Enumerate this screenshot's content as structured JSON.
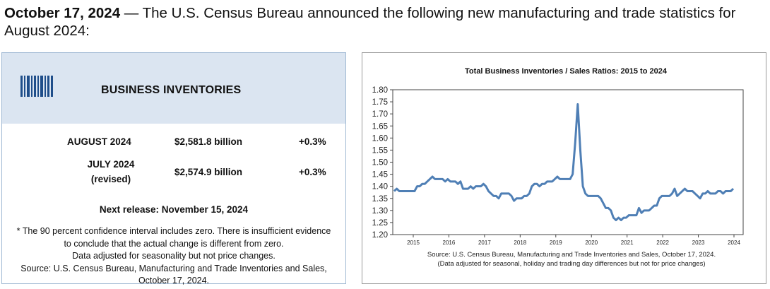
{
  "headline": {
    "date": "October 17, 2024",
    "text": " — The U.S. Census Bureau announced the following new manufacturing and trade statistics for August 2024:"
  },
  "panel": {
    "title": "BUSINESS INVENTORIES",
    "rows": [
      {
        "label": "AUGUST 2024",
        "value": "$2,581.8 billion",
        "change": "+0.3%"
      },
      {
        "label": "JULY 2024",
        "sublabel": "(revised)",
        "value": "$2,574.9 billion",
        "change": "+0.3%"
      }
    ],
    "next_release": "Next release: November 15, 2024",
    "notes": [
      "* The 90 percent confidence interval includes zero. There is insufficient evidence",
      "to conclude that the actual change is different from zero.",
      "Data adjusted for seasonality but not price changes.",
      "Source: U.S. Census Bureau, Manufacturing and Trade Inventories and Sales,",
      "October 17, 2024."
    ]
  },
  "chart_data": {
    "type": "line",
    "title": "Total Business Inventories / Sales Ratios: 2015 to 2024",
    "ylim": [
      1.2,
      1.8
    ],
    "yticks": [
      "1.80",
      "1.75",
      "1.70",
      "1.65",
      "1.60",
      "1.55",
      "1.50",
      "1.45",
      "1.40",
      "1.35",
      "1.30",
      "1.25",
      "1.20"
    ],
    "xticks": [
      "2015",
      "2016",
      "2017",
      "2018",
      "2019",
      "2020",
      "2021",
      "2022",
      "2023",
      "2024"
    ],
    "grid": false,
    "line_color": "#4f7fb5",
    "source": "Source: U.S. Census Bureau, Manufacturing and Trade Inventories and Sales, October 17, 2024.",
    "footnote": "(Data adjusted for seasonal, holiday and trading day differences but not for price changes)",
    "series": [
      {
        "values": [
          1.38,
          1.39,
          1.38,
          1.38,
          1.38,
          1.38,
          1.38,
          1.38,
          1.38,
          1.4,
          1.4,
          1.41,
          1.41,
          1.42,
          1.43,
          1.44,
          1.43,
          1.43,
          1.43,
          1.43,
          1.42,
          1.43,
          1.42,
          1.42,
          1.42,
          1.41,
          1.42,
          1.39,
          1.39,
          1.39,
          1.4,
          1.39,
          1.4,
          1.4,
          1.4,
          1.41,
          1.4,
          1.38,
          1.37,
          1.36,
          1.36,
          1.35,
          1.37,
          1.37,
          1.37,
          1.37,
          1.36,
          1.34,
          1.35,
          1.35,
          1.35,
          1.36,
          1.36,
          1.37,
          1.4,
          1.41,
          1.41,
          1.4,
          1.41,
          1.41,
          1.42,
          1.42,
          1.42,
          1.43,
          1.44,
          1.43,
          1.43,
          1.43,
          1.43,
          1.43,
          1.45,
          1.58,
          1.74,
          1.55,
          1.4,
          1.37,
          1.36,
          1.36,
          1.36,
          1.36,
          1.36,
          1.35,
          1.33,
          1.31,
          1.31,
          1.3,
          1.27,
          1.26,
          1.27,
          1.26,
          1.27,
          1.27,
          1.28,
          1.28,
          1.28,
          1.28,
          1.31,
          1.29,
          1.3,
          1.3,
          1.3,
          1.31,
          1.32,
          1.32,
          1.35,
          1.36,
          1.36,
          1.36,
          1.36,
          1.37,
          1.39,
          1.36,
          1.37,
          1.38,
          1.39,
          1.38,
          1.38,
          1.38,
          1.37,
          1.36,
          1.35,
          1.37,
          1.37,
          1.38,
          1.37,
          1.37,
          1.37,
          1.38,
          1.38,
          1.37,
          1.38,
          1.38,
          1.38,
          1.39
        ]
      }
    ]
  }
}
